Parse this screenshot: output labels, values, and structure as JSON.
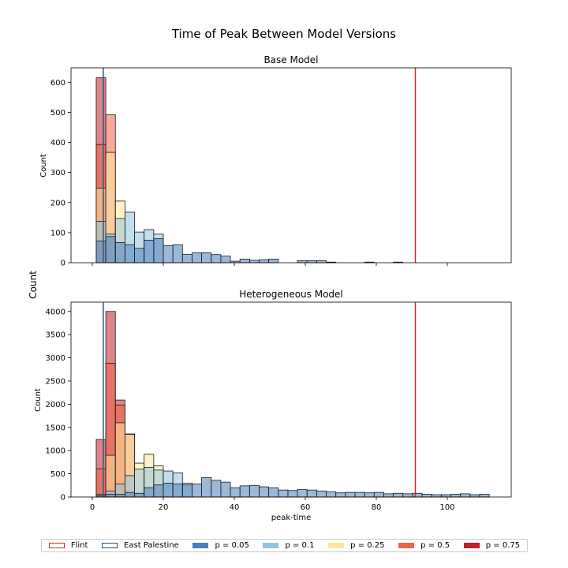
{
  "figure": {
    "suptitle": "Time of Peak Between Model Versions",
    "shared_ylabel": "Count"
  },
  "legend": [
    {
      "label": "Flint",
      "style": "outline",
      "color": "#d62728"
    },
    {
      "label": "East Palestine",
      "style": "outline",
      "color": "#1f4e79"
    },
    {
      "label": "p = 0.05",
      "style": "filled",
      "color": "#4a7fbb"
    },
    {
      "label": "p = 0.1",
      "style": "filled",
      "color": "#92c5de"
    },
    {
      "label": "p = 0.25",
      "style": "filled",
      "color": "#fee79b"
    },
    {
      "label": "p = 0.5",
      "style": "filled",
      "color": "#ef6548"
    },
    {
      "label": "p = 0.75",
      "style": "filled",
      "color": "#c0202c"
    }
  ],
  "chart_data": [
    {
      "type": "bar",
      "title": "Base Model",
      "xlabel": "",
      "ylabel": "Count",
      "xlim": [
        -6,
        118
      ],
      "ylim": [
        0,
        648
      ],
      "x_ticks": [
        0,
        20,
        40,
        60,
        80,
        100
      ],
      "y_ticks": [
        0,
        100,
        200,
        300,
        400,
        500,
        600
      ],
      "bin_width": 2.7,
      "bin_start": 1.1,
      "vlines": [
        {
          "name": "Flint",
          "x": 91,
          "color": "#d62728"
        },
        {
          "name": "East Palestine",
          "x": 3.1,
          "color": "#2d5b86"
        }
      ],
      "series": [
        {
          "name": "p = 0.75",
          "color": "#c0202c",
          "values": [
            615,
            0,
            0,
            0,
            0,
            0,
            0,
            0,
            0
          ]
        },
        {
          "name": "p = 0.5",
          "color": "#ef6548",
          "values": [
            393,
            492,
            0,
            0,
            0,
            0,
            0,
            0,
            0
          ]
        },
        {
          "name": "p = 0.25",
          "color": "#fee79b",
          "values": [
            248,
            367,
            205,
            0,
            0,
            0,
            0,
            0,
            0
          ]
        },
        {
          "name": "p = 0.1",
          "color": "#92c5de",
          "values": [
            138,
            95,
            147,
            168,
            102,
            110,
            95,
            0,
            0
          ]
        },
        {
          "name": "p = 0.05",
          "color": "#4a7fbb",
          "values": [
            72,
            87,
            67,
            60,
            48,
            75,
            80,
            57,
            60,
            28,
            33,
            33,
            27,
            22,
            5,
            12,
            8,
            10,
            12,
            0,
            0,
            7,
            7,
            7,
            2,
            0,
            0,
            0,
            2,
            0,
            0,
            2
          ]
        }
      ]
    },
    {
      "type": "bar",
      "title": "Heterogeneous Model",
      "xlabel": "peak-time",
      "ylabel": "Count",
      "xlim": [
        -6,
        118
      ],
      "ylim": [
        0,
        4200
      ],
      "x_ticks": [
        0,
        20,
        40,
        60,
        80,
        100
      ],
      "y_ticks": [
        0,
        500,
        1000,
        1500,
        2000,
        2500,
        3000,
        3500,
        4000
      ],
      "bin_width": 2.7,
      "bin_start": 1.1,
      "vlines": [
        {
          "name": "Flint",
          "x": 91,
          "color": "#d62728"
        },
        {
          "name": "East Palestine",
          "x": 3.1,
          "color": "#2d5b86"
        }
      ],
      "series": [
        {
          "name": "p = 0.75",
          "color": "#c0202c",
          "values": [
            1240,
            4000,
            2090,
            0,
            0,
            0,
            0,
            0,
            0
          ]
        },
        {
          "name": "p = 0.5",
          "color": "#ef6548",
          "values": [
            610,
            2880,
            1980,
            1360,
            0,
            0,
            0,
            0,
            0
          ]
        },
        {
          "name": "p = 0.25",
          "color": "#fee79b",
          "values": [
            60,
            900,
            1600,
            1350,
            730,
            920,
            670,
            0,
            0
          ]
        },
        {
          "name": "p = 0.1",
          "color": "#92c5de",
          "values": [
            30,
            130,
            280,
            460,
            600,
            640,
            580,
            560,
            520,
            300,
            0,
            0,
            0,
            0,
            0,
            0
          ]
        },
        {
          "name": "p = 0.05",
          "color": "#4a7fbb",
          "values": [
            30,
            60,
            60,
            100,
            80,
            200,
            260,
            300,
            280,
            260,
            280,
            420,
            360,
            320,
            200,
            240,
            250,
            220,
            200,
            150,
            140,
            160,
            150,
            130,
            110,
            90,
            100,
            100,
            90,
            100,
            70,
            80,
            70,
            80,
            60,
            50,
            50,
            60,
            70,
            50,
            60
          ]
        }
      ]
    }
  ]
}
